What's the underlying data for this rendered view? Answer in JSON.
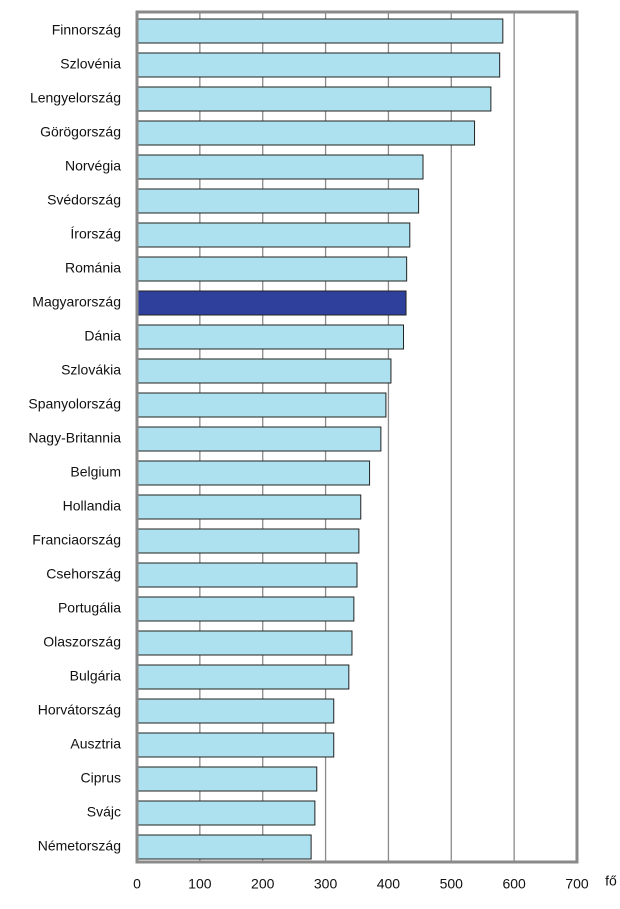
{
  "chart_data": {
    "type": "hbar",
    "categories": [
      "Finnország",
      "Szlovénia",
      "Lengyelország",
      "Görögország",
      "Norvégia",
      "Svédország",
      "Írország",
      "Románia",
      "Magyarország",
      "Dánia",
      "Szlovákia",
      "Spanyolország",
      "Nagy-Britannia",
      "Belgium",
      "Hollandia",
      "Franciaország",
      "Csehország",
      "Portugália",
      "Olaszország",
      "Bulgária",
      "Horvátország",
      "Ausztria",
      "Ciprus",
      "Svájc",
      "Németország"
    ],
    "values": [
      582,
      577,
      563,
      537,
      455,
      448,
      434,
      429,
      428,
      424,
      404,
      396,
      388,
      370,
      356,
      353,
      350,
      345,
      342,
      337,
      313,
      313,
      286,
      283,
      277
    ],
    "colors": [
      "#aee1ef",
      "#aee1ef",
      "#aee1ef",
      "#aee1ef",
      "#aee1ef",
      "#aee1ef",
      "#aee1ef",
      "#aee1ef",
      "#2f409c",
      "#aee1ef",
      "#aee1ef",
      "#aee1ef",
      "#aee1ef",
      "#aee1ef",
      "#aee1ef",
      "#aee1ef",
      "#aee1ef",
      "#aee1ef",
      "#aee1ef",
      "#aee1ef",
      "#aee1ef",
      "#aee1ef",
      "#aee1ef",
      "#aee1ef",
      "#aee1ef"
    ],
    "x_axis_label": "fő",
    "xlim": [
      0,
      700
    ],
    "xticks": [
      0,
      100,
      200,
      300,
      400,
      500,
      600,
      700
    ],
    "grid": true
  }
}
